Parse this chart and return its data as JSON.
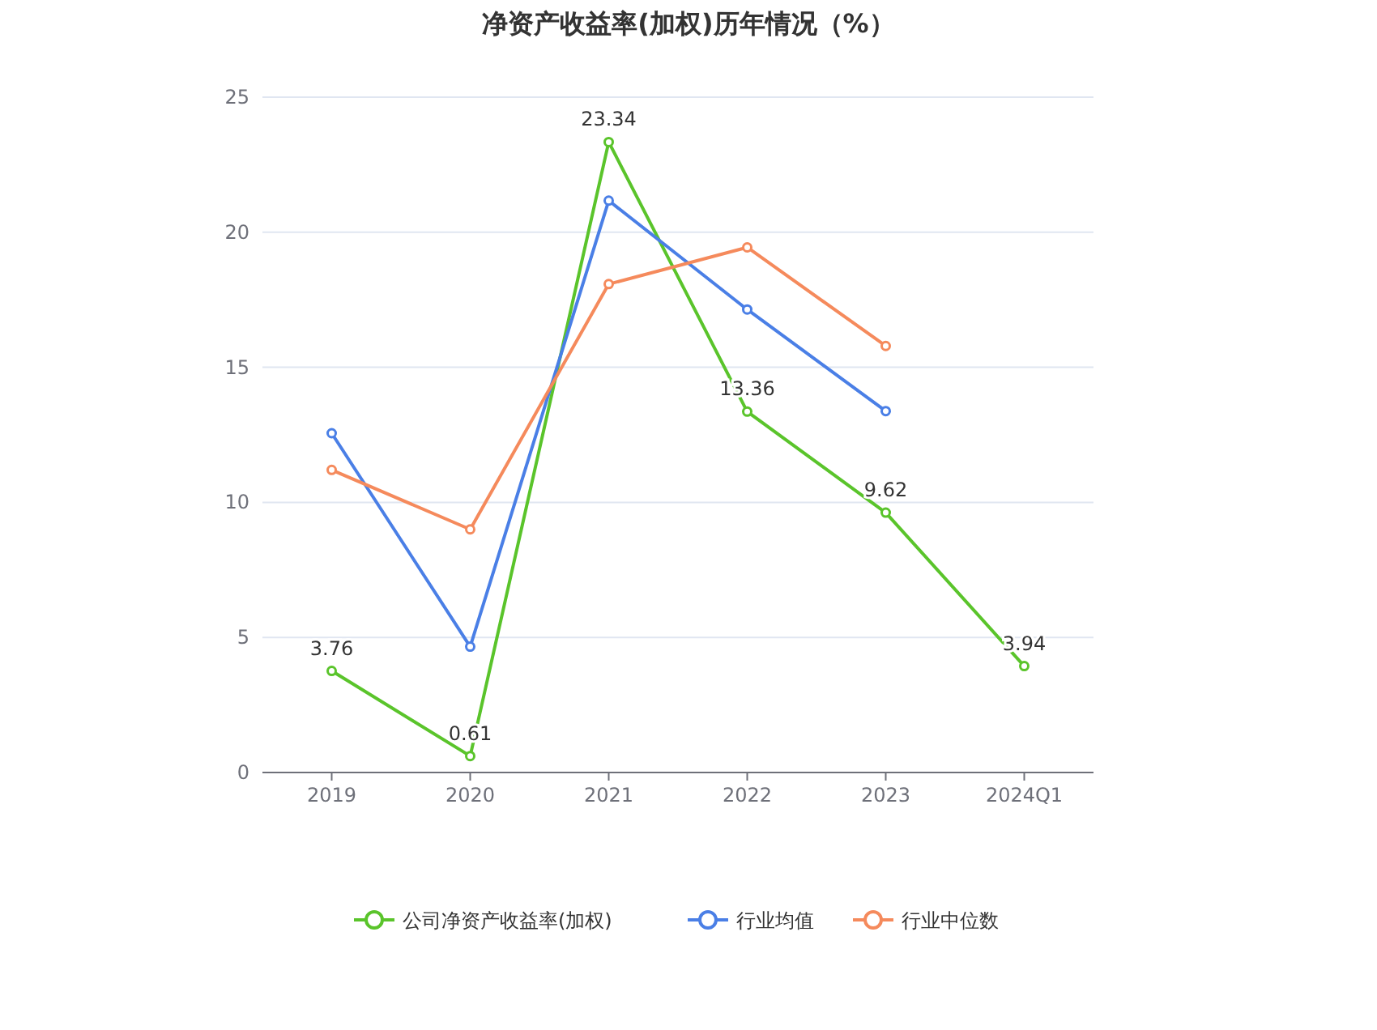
{
  "chart_data": {
    "type": "line",
    "title": "净资产收益率(加权)历年情况（%）",
    "categories": [
      "2019",
      "2020",
      "2021",
      "2022",
      "2023",
      "2024Q1"
    ],
    "series": [
      {
        "name": "公司净资产收益率(加权)",
        "color": "#5ac42b",
        "values": [
          3.76,
          0.61,
          23.34,
          13.36,
          9.62,
          3.94
        ],
        "value_labels": [
          "3.76",
          "0.61",
          "23.34",
          "13.36",
          "9.62",
          "3.94"
        ]
      },
      {
        "name": "行业均值",
        "color": "#4a7fe6",
        "values": [
          12.56,
          4.66,
          21.17,
          17.14,
          13.38,
          null
        ]
      },
      {
        "name": "行业中位数",
        "color": "#f58a5c",
        "values": [
          11.2,
          9.0,
          18.08,
          19.44,
          15.79,
          null
        ]
      }
    ],
    "ylim": [
      0,
      25
    ],
    "yticks": [
      0,
      5,
      10,
      15,
      20,
      25
    ],
    "grid": "y",
    "legend": "bottom",
    "marker": "circle"
  }
}
